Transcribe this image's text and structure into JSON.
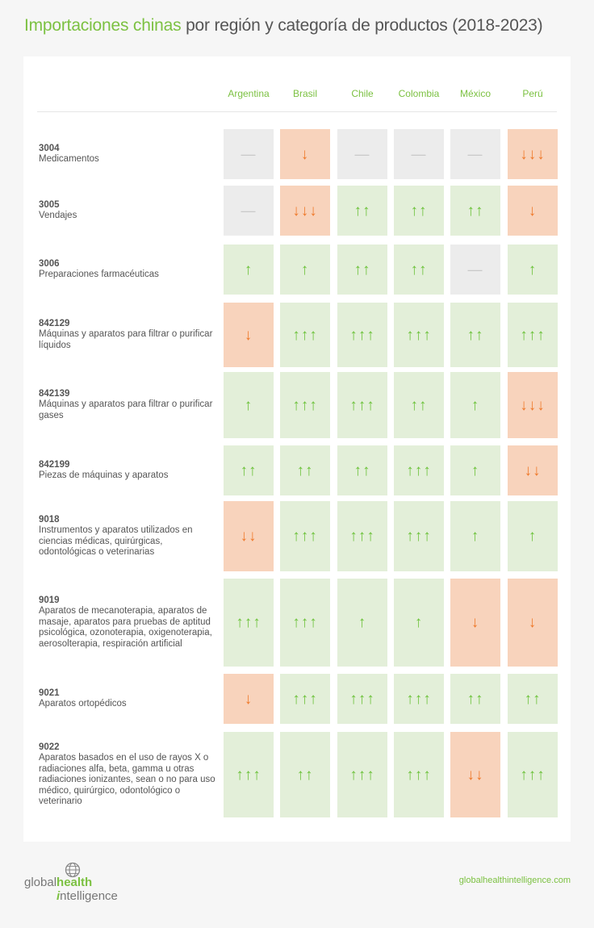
{
  "title": {
    "highlight": "Importaciones chinas",
    "rest": " por región y categoría de productos (2018-2023)"
  },
  "colors": {
    "accent": "#7cc142",
    "up_bg": "#e3efd9",
    "up_fg": "#6cc23a",
    "down_bg": "#f8d3bc",
    "down_fg": "#ef7a2c",
    "none_bg": "#ececec",
    "none_fg": "#c9c9c9"
  },
  "chart_data": {
    "type": "table",
    "columns": [
      "Argentina",
      "Brasil",
      "Chile",
      "Colombia",
      "México",
      "Perú"
    ],
    "rows": [
      {
        "code": "3004",
        "label": "Medicamentos",
        "values": [
          0,
          -1,
          0,
          0,
          0,
          -3
        ]
      },
      {
        "code": "3005",
        "label": "Vendajes",
        "values": [
          0,
          -3,
          2,
          2,
          2,
          -1
        ]
      },
      {
        "code": "3006",
        "label": "Preparaciones farmacéuticas",
        "values": [
          1,
          1,
          2,
          2,
          0,
          1
        ]
      },
      {
        "code": "842129",
        "label": "Máquinas y aparatos para filtrar o purificar líquidos",
        "values": [
          -1,
          3,
          3,
          3,
          2,
          3
        ]
      },
      {
        "code": "842139",
        "label": "Máquinas y aparatos para filtrar o purificar gases",
        "values": [
          1,
          3,
          3,
          2,
          1,
          -3
        ]
      },
      {
        "code": "842199",
        "label": "Piezas de máquinas y aparatos",
        "values": [
          2,
          2,
          2,
          3,
          1,
          -2
        ]
      },
      {
        "code": "9018",
        "label": "Instrumentos y aparatos utilizados en ciencias médicas, quirúrgicas, odontológicas o veterinarias",
        "values": [
          -2,
          3,
          3,
          3,
          1,
          1
        ]
      },
      {
        "code": "9019",
        "label": "Aparatos de mecanoterapia, aparatos de masaje, aparatos para pruebas de aptitud psicológica, ozonoterapia, oxigenoterapia, aerosolterapia, respiración artificial",
        "values": [
          3,
          3,
          1,
          1,
          -1,
          -1
        ]
      },
      {
        "code": "9021",
        "label": "Aparatos ortopédicos",
        "values": [
          -1,
          3,
          3,
          3,
          2,
          2
        ]
      },
      {
        "code": "9022",
        "label": "Aparatos basados en el uso de rayos X o radiaciones alfa, beta, gamma u otras radiaciones ionizantes, sean o no para uso médico, quirúrgico, odontológico o veterinario",
        "values": [
          3,
          2,
          3,
          3,
          -2,
          3
        ]
      }
    ]
  },
  "footer": {
    "url": "globalhealthintelligence.com",
    "logo_icon": "globe-icon",
    "logo_text": {
      "p1": "global",
      "p2": "health",
      "p3": "i",
      "p4": "ntelligence"
    }
  }
}
